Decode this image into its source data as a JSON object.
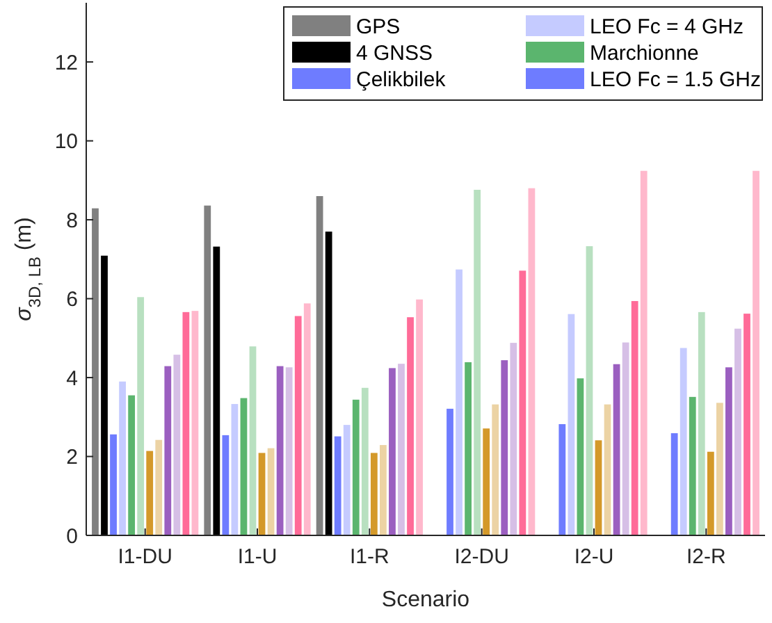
{
  "chart_data": {
    "type": "bar",
    "xlabel": "Scenario",
    "ylabel": "σ$_{3D, LB}$ (m)",
    "categories": [
      "I1-DU",
      "I1-U",
      "I1-R",
      "I2-DU",
      "I2-U",
      "I2-R"
    ],
    "series": [
      {
        "name": "GPS",
        "color": "#808080",
        "values": [
          8.29,
          8.36,
          8.6,
          null,
          null,
          null
        ]
      },
      {
        "name": "4 GNSS",
        "color": "#000000",
        "values": [
          7.09,
          7.32,
          7.7,
          null,
          null,
          null
        ]
      },
      {
        "name": "Çelikbilek",
        "color": "#6e7cff",
        "values": [
          2.56,
          2.54,
          2.51,
          3.21,
          2.82,
          2.59
        ]
      },
      {
        "name": "LEO Fc = 4 GHz",
        "color": "#c5cbff",
        "values": [
          3.9,
          3.33,
          2.8,
          6.74,
          5.61,
          4.75
        ]
      },
      {
        "name": "Marchionne",
        "color": "#5bb56e",
        "values": [
          3.55,
          3.48,
          3.44,
          4.39,
          3.98,
          3.51
        ]
      },
      {
        "color": "#b8e0c0",
        "values": [
          6.04,
          4.79,
          3.74,
          8.76,
          7.33,
          5.66
        ]
      },
      {
        "color": "#d4992a",
        "values": [
          2.14,
          2.09,
          2.09,
          2.71,
          2.41,
          2.12
        ]
      },
      {
        "color": "#ecd3a4",
        "values": [
          2.42,
          2.21,
          2.29,
          3.32,
          3.32,
          3.36
        ]
      },
      {
        "color": "#9b5fc0",
        "values": [
          4.29,
          4.29,
          4.24,
          4.44,
          4.34,
          4.26
        ]
      },
      {
        "color": "#d6bfe6",
        "values": [
          4.58,
          4.26,
          4.35,
          4.88,
          4.89,
          5.24
        ]
      },
      {
        "color": "#ff6b98",
        "values": [
          5.66,
          5.56,
          5.53,
          6.71,
          5.94,
          5.62
        ]
      },
      {
        "color": "#ffb8cc",
        "values": [
          5.69,
          5.88,
          5.98,
          8.8,
          9.24,
          9.24
        ]
      }
    ],
    "annotations": [
      "LEO Fc = 1.5 GHz"
    ],
    "ylim": [
      0,
      13.5
    ],
    "yticks": [
      0,
      2,
      4,
      6,
      8,
      10,
      12
    ],
    "grid": false,
    "legend": "top right"
  }
}
